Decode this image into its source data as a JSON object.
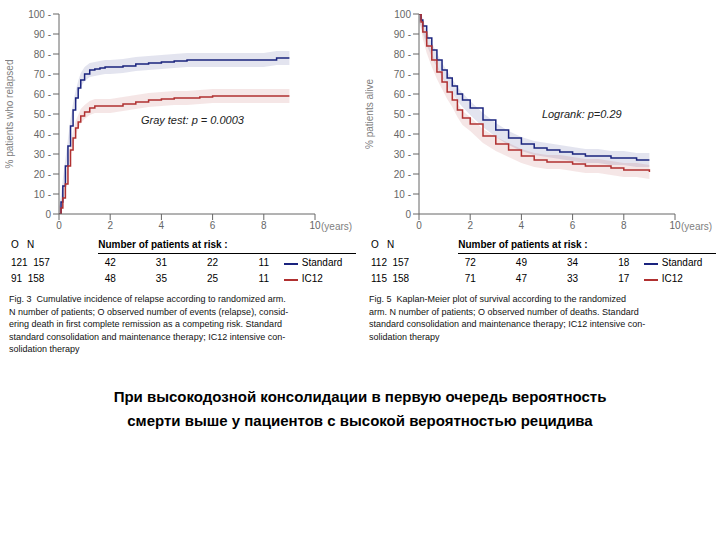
{
  "chart_data": [
    {
      "type": "step",
      "ylabel": "% patients who relapsed",
      "xlabel": "(years)",
      "xlim": [
        0,
        10
      ],
      "ylim": [
        0,
        100
      ],
      "xticks": [
        0,
        2,
        4,
        6,
        8,
        10
      ],
      "yticks": [
        0,
        {
          "value": 10,
          "label": "10 -"
        },
        {
          "value": 20,
          "label": "20 -"
        },
        {
          "value": 30,
          "label": "30 -"
        },
        {
          "value": 40,
          "label": "40 -"
        },
        {
          "value": 50,
          "label": "50 -"
        },
        {
          "value": 60,
          "label": "60 -"
        },
        {
          "value": 70,
          "label": "70 -"
        },
        {
          "value": 80,
          "label": "80 -"
        },
        {
          "value": 90,
          "label": "90 -"
        },
        {
          "value": 100,
          "label": "100 -"
        }
      ],
      "grid": false,
      "annotation": "Gray test: p = 0.0003",
      "o_n_header": "O   N",
      "at_risk_title": "Number of patients at risk :",
      "at_risk_x": [
        2,
        4,
        6,
        8
      ],
      "series": [
        {
          "name": "Standard",
          "color": "#1a237e",
          "x": [
            0,
            0.08,
            0.15,
            0.25,
            0.35,
            0.45,
            0.55,
            0.65,
            0.75,
            0.85,
            1.0,
            1.2,
            1.4,
            1.6,
            1.8,
            2.0,
            2.5,
            3.0,
            3.5,
            4.0,
            4.5,
            5.0,
            6.0,
            7.0,
            8.0,
            8.5,
            9.0
          ],
          "values": [
            0,
            6,
            14,
            24,
            34,
            44,
            52,
            58,
            63,
            67,
            70,
            72,
            72.5,
            73,
            73.5,
            73.5,
            74,
            75,
            75.5,
            76,
            76.5,
            77,
            77,
            77,
            77,
            78,
            78
          ],
          "lower": [
            0,
            2.5,
            10.5,
            20.5,
            30.5,
            40.5,
            48.5,
            54.5,
            59.5,
            63.5,
            66.5,
            68.5,
            69,
            69.5,
            70,
            70,
            70.5,
            71.5,
            72,
            72.5,
            73,
            73.5,
            73.5,
            73.5,
            73.5,
            74.5,
            74.5
          ],
          "upper": [
            3.5,
            9.5,
            17.5,
            27.5,
            37.5,
            47.5,
            55.5,
            61.5,
            66.5,
            70.5,
            73.5,
            75.5,
            76,
            76.5,
            77,
            77,
            77.5,
            78.5,
            79,
            79.5,
            80,
            80.5,
            80.5,
            80.5,
            80.5,
            81.5,
            81.5
          ],
          "o_n": "121  157",
          "at_risk": [
            42,
            31,
            22,
            11
          ]
        },
        {
          "name": "IC12",
          "color": "#b03030",
          "x": [
            0,
            0.08,
            0.15,
            0.25,
            0.35,
            0.45,
            0.55,
            0.65,
            0.75,
            0.85,
            1.0,
            1.2,
            1.4,
            1.6,
            1.8,
            2.0,
            2.5,
            3.0,
            3.5,
            4.0,
            4.5,
            5.0,
            5.5,
            6.0,
            7.0,
            8.0,
            9.0
          ],
          "values": [
            0,
            3,
            8,
            15,
            24,
            32,
            38,
            43,
            46,
            49,
            51,
            53,
            54,
            54,
            54,
            54,
            55,
            56,
            57,
            57.5,
            58,
            58,
            58.5,
            59,
            59,
            59,
            59
          ],
          "lower": [
            0,
            0,
            4.5,
            11.5,
            20.5,
            28.5,
            34.5,
            39.5,
            42.5,
            45.5,
            47.5,
            49.5,
            50.5,
            50.5,
            50.5,
            50.5,
            51.5,
            52.5,
            53.5,
            54,
            54.5,
            54.5,
            55,
            55.5,
            55.5,
            55.5,
            55.5
          ],
          "upper": [
            3.5,
            6.5,
            11.5,
            18.5,
            27.5,
            35.5,
            41.5,
            46.5,
            49.5,
            52.5,
            54.5,
            56.5,
            57.5,
            57.5,
            57.5,
            57.5,
            58.5,
            59.5,
            60.5,
            61,
            61.5,
            61.5,
            62,
            62.5,
            62.5,
            62.5,
            62.5
          ],
          "o_n": "91  158",
          "at_risk": [
            48,
            35,
            25,
            11
          ]
        }
      ],
      "caption": [
        "Fig. 3  Cumulative incidence of relapse according to randomized arm.",
        "N number of patients; O observed number of events (relapse), consid-",
        "ering death in first complete remission as a competing risk. Standard",
        "standard consolidation and maintenance therapy; IC12 intensive con-",
        "solidation therapy"
      ]
    },
    {
      "type": "step",
      "ylabel": "% patients alive",
      "xlabel": "(years)",
      "xlim": [
        0,
        10
      ],
      "ylim": [
        0,
        100
      ],
      "xticks": [
        0,
        2,
        4,
        6,
        8,
        10
      ],
      "yticks": [
        0,
        {
          "value": 10,
          "label": "10 -"
        },
        {
          "value": 20,
          "label": "20 -"
        },
        {
          "value": 30,
          "label": "30 -"
        },
        {
          "value": 40,
          "label": "40 -"
        },
        {
          "value": 50,
          "label": "50 -"
        },
        {
          "value": 60,
          "label": "60 -"
        },
        {
          "value": 70,
          "label": "70 -"
        },
        {
          "value": 80,
          "label": "80 -"
        },
        {
          "value": 90,
          "label": "90 -"
        },
        100
      ],
      "grid": false,
      "annotation": "Logrank: p=0.29",
      "o_n_header": "O   N",
      "at_risk_title": "Number of patients at risk :",
      "at_risk_x": [
        2,
        4,
        6,
        8
      ],
      "series": [
        {
          "name": "Standard",
          "color": "#1a237e",
          "x": [
            0,
            0.08,
            0.15,
            0.3,
            0.5,
            0.7,
            0.9,
            1.1,
            1.3,
            1.5,
            1.7,
            2.0,
            2.5,
            3.0,
            3.5,
            4.0,
            4.5,
            5.0,
            5.5,
            6.0,
            6.5,
            7.0,
            7.5,
            8.0,
            8.5,
            9.0
          ],
          "values": [
            100,
            97,
            94,
            88,
            82,
            77,
            72,
            68,
            64,
            60,
            57,
            53,
            47,
            42,
            38,
            35,
            33,
            32,
            31,
            30,
            29,
            29,
            28,
            28,
            27,
            27
          ],
          "lower": [
            96.5,
            93.5,
            90.5,
            84.5,
            78.5,
            73.5,
            68.5,
            64.5,
            60.5,
            56.5,
            53.5,
            49.5,
            43.5,
            38.5,
            34.5,
            31.5,
            29.5,
            28.5,
            27.5,
            26.5,
            25.5,
            25.5,
            24.5,
            24.5,
            23.5,
            23.5
          ],
          "upper": [
            100,
            100,
            97.5,
            91.5,
            85.5,
            80.5,
            75.5,
            71.5,
            67.5,
            63.5,
            60.5,
            56.5,
            50.5,
            45.5,
            41.5,
            38.5,
            36.5,
            35.5,
            34.5,
            33.5,
            32.5,
            32.5,
            31.5,
            31.5,
            30.5,
            30.5
          ],
          "o_n": "112  157",
          "at_risk": [
            72,
            49,
            34,
            18
          ]
        },
        {
          "name": "IC12",
          "color": "#b03030",
          "x": [
            0,
            0.08,
            0.15,
            0.3,
            0.5,
            0.7,
            0.9,
            1.1,
            1.3,
            1.5,
            1.7,
            2.0,
            2.5,
            3.0,
            3.5,
            4.0,
            4.5,
            5.0,
            5.5,
            6.0,
            6.5,
            7.0,
            7.5,
            8.0,
            8.5,
            9.0
          ],
          "values": [
            100,
            96,
            91,
            84,
            77,
            71,
            66,
            61,
            57,
            52,
            48,
            45,
            39,
            35,
            32,
            29,
            27,
            26,
            26,
            25,
            24,
            24,
            23,
            22,
            22,
            21
          ],
          "lower": [
            96.5,
            92.5,
            87.5,
            80.5,
            73.5,
            67.5,
            62.5,
            57.5,
            53.5,
            48.5,
            44.5,
            41.5,
            35.5,
            31.5,
            28.5,
            25.5,
            23.5,
            22.5,
            22.5,
            21.5,
            20.5,
            20.5,
            19.5,
            18.5,
            18.5,
            17.5
          ],
          "upper": [
            100,
            99.5,
            94.5,
            87.5,
            80.5,
            74.5,
            69.5,
            64.5,
            60.5,
            55.5,
            51.5,
            48.5,
            42.5,
            38.5,
            35.5,
            32.5,
            30.5,
            29.5,
            29.5,
            28.5,
            27.5,
            27.5,
            26.5,
            25.5,
            25.5,
            24.5
          ],
          "o_n": "115  158",
          "at_risk": [
            71,
            47,
            33,
            17
          ]
        }
      ],
      "caption": [
        "Fig. 5  Kaplan-Meier plot of survival according to the randomized",
        "arm. N number of patients; O observed number of deaths. Standard",
        "standard consolidation and maintenance therapy; IC12 intensive con-",
        "solidation therapy"
      ]
    }
  ],
  "bottom_text": [
    "При высокодозной консолидации в первую очередь вероятность",
    "смерти выше у пациентов с высокой вероятностью рецидива"
  ]
}
